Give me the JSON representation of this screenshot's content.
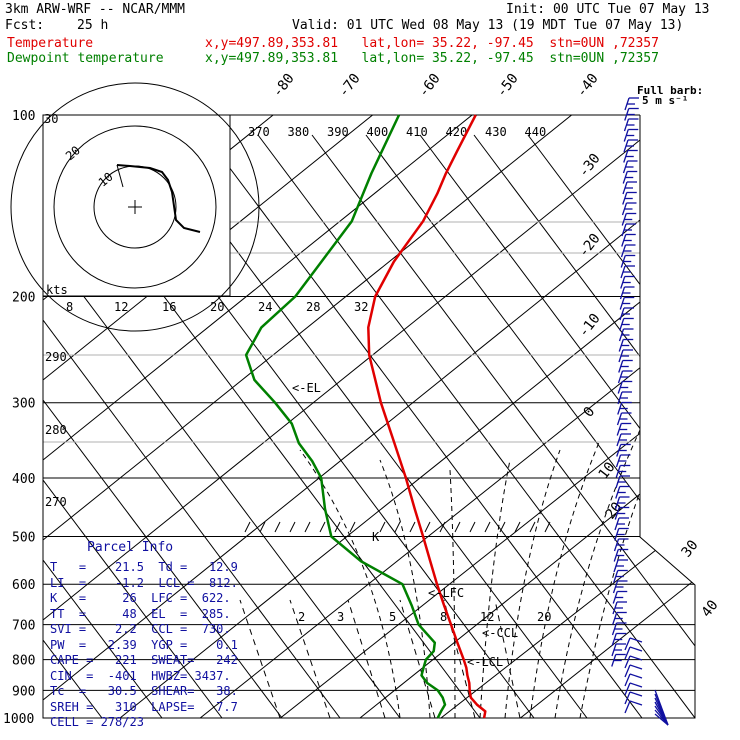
{
  "header": {
    "model": "3km ARW-WRF -- NCAR/MMM",
    "init": "Init: 00 UTC Tue 07 May 13",
    "fcst_label": "Fcst:",
    "fcst_value": "25 h",
    "valid": "Valid: 01 UTC Wed 08 May 13 (19 MDT Tue 07 May 13)"
  },
  "legend": [
    {
      "name": "Temperature",
      "loc": "x,y=497.89,353.81   lat,lon= 35.22, -97.45  stn=0UN ,72357",
      "color": "#e00000"
    },
    {
      "name": "Dewpoint temperature",
      "loc": "x,y=497.89,353.81   lat,lon= 35.22, -97.45  stn=0UN ,72357",
      "color": "#008000"
    }
  ],
  "barb_note": {
    "line1": "Full barb:",
    "line2": "5 m s⁻¹"
  },
  "parcel_info": {
    "title": "Parcel Info",
    "rows": [
      "T   =    21.5  Td =   12.9",
      "LI  =    -1.2  LCL =  812.",
      "K   =     26  LFC =  622.",
      "TT  =     48  EL  =  285.",
      "SVI =    2.2  CCL =  730.",
      "PW  =   2.39  YGP =    0.1",
      "CAPE =   221  SWEAT=   242",
      "CIN  =  -401  HWBZ= 3437.",
      "Tc  =   30.5  SHEAR=   38.",
      "SREH =   310  LAPSE=   7.7",
      "CELL = 278/23"
    ]
  },
  "levels": {
    "EL": "<-EL",
    "LFC": "<-LFC",
    "CCL": "<-CCL",
    "LCL": "<-LCL"
  },
  "hodograph": {
    "units": "kts",
    "ring_labels": [
      "30",
      "20",
      "10"
    ]
  },
  "chart_data": {
    "type": "line",
    "title": "",
    "ylabel": "",
    "y_ticks": [
      100,
      200,
      300,
      400,
      500,
      600,
      700,
      800,
      900,
      1000
    ],
    "isotherm_labels": [
      "-80",
      "-70",
      "-60",
      "-50",
      "-40",
      "-30",
      "-20",
      "-10",
      "0",
      "10",
      "20",
      "30",
      "40"
    ],
    "theta_labels": [
      "370",
      "380",
      "390",
      "400",
      "410",
      "420",
      "430",
      "440"
    ],
    "speed_labels": [
      "8",
      "12",
      "16",
      "20",
      "24",
      "28",
      "32"
    ],
    "theta_e_labels": [
      "290",
      "280",
      "270"
    ],
    "mixing_ratio_labels": [
      "2",
      "3",
      "5",
      "8",
      "12",
      "20"
    ],
    "series": [
      {
        "name": "Temperature",
        "color": "#e00000",
        "points": [
          [
            1000,
            21.5
          ],
          [
            975,
            20.8
          ],
          [
            950,
            18.3
          ],
          [
            925,
            16.2
          ],
          [
            900,
            15.0
          ],
          [
            875,
            13.9
          ],
          [
            850,
            12.5
          ],
          [
            825,
            11.2
          ],
          [
            800,
            9.6
          ],
          [
            750,
            6.1
          ],
          [
            700,
            2.4
          ],
          [
            650,
            -1.6
          ],
          [
            600,
            -5.8
          ],
          [
            550,
            -10.2
          ],
          [
            500,
            -15.0
          ],
          [
            450,
            -20.4
          ],
          [
            400,
            -26.3
          ],
          [
            350,
            -33.3
          ],
          [
            300,
            -41.4
          ],
          [
            250,
            -50.2
          ],
          [
            225,
            -54.2
          ],
          [
            200,
            -57.2
          ],
          [
            175,
            -58.6
          ],
          [
            150,
            -58.8
          ],
          [
            135,
            -60.0
          ],
          [
            125,
            -61.2
          ],
          [
            115,
            -62.2
          ],
          [
            100,
            -63.8
          ]
        ]
      },
      {
        "name": "Dewpoint temperature",
        "color": "#008000",
        "points": [
          [
            1000,
            12.9
          ],
          [
            975,
            12.6
          ],
          [
            950,
            12.4
          ],
          [
            925,
            11.0
          ],
          [
            900,
            9.1
          ],
          [
            875,
            6.1
          ],
          [
            850,
            4.0
          ],
          [
            825,
            3.3
          ],
          [
            800,
            2.6
          ],
          [
            775,
            2.9
          ],
          [
            750,
            1.9
          ],
          [
            700,
            -3.6
          ],
          [
            650,
            -7.6
          ],
          [
            600,
            -12.2
          ],
          [
            550,
            -23.0
          ],
          [
            500,
            -32.0
          ],
          [
            450,
            -37.0
          ],
          [
            400,
            -42.0
          ],
          [
            375,
            -46.0
          ],
          [
            350,
            -51.0
          ],
          [
            325,
            -55.0
          ],
          [
            300,
            -61.0
          ],
          [
            275,
            -68.0
          ],
          [
            250,
            -73.0
          ],
          [
            225,
            -74.0
          ],
          [
            200,
            -72.0
          ],
          [
            175,
            -72.0
          ],
          [
            150,
            -72.0
          ],
          [
            125,
            -75.0
          ],
          [
            100,
            -78.0
          ]
        ]
      }
    ]
  }
}
